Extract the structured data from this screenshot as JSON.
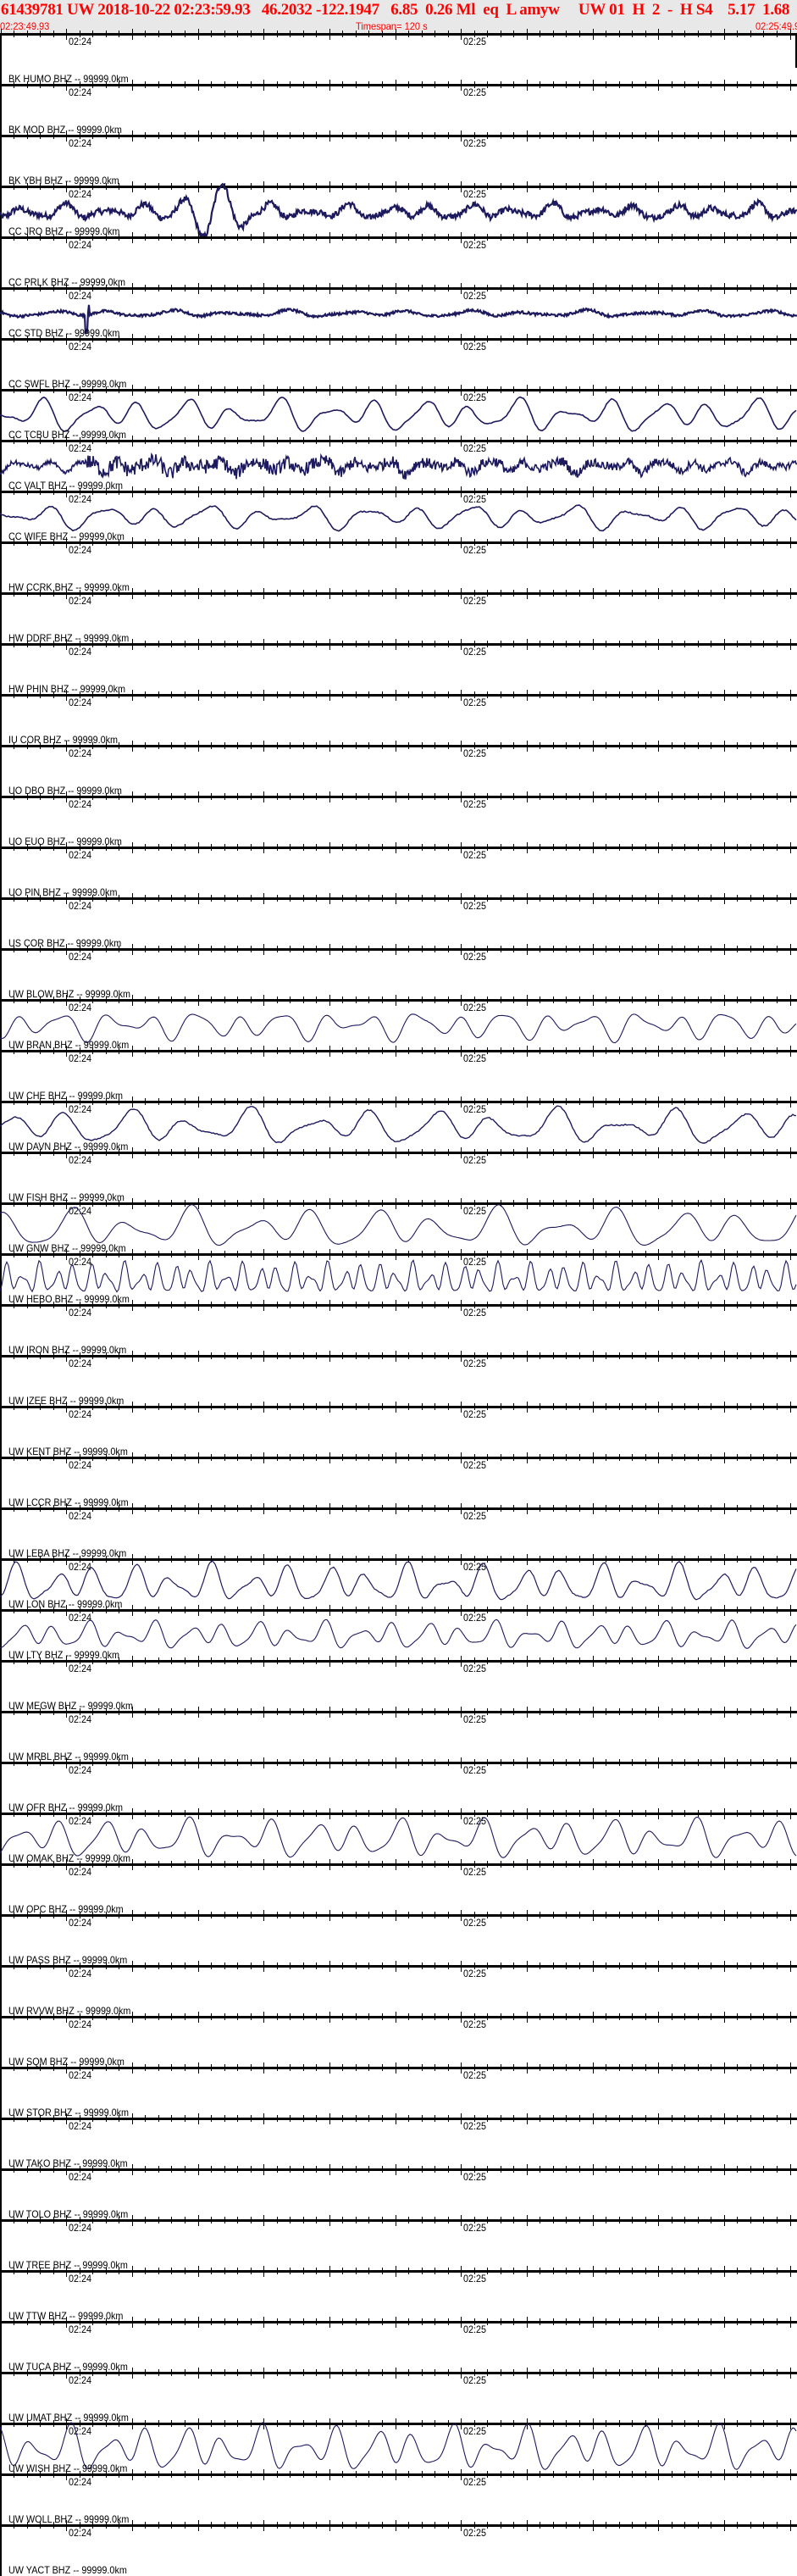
{
  "header": {
    "title_parts": [
      "61439781 UW 2018-10-22 02:23:59.93",
      "46.2032 -122.1947",
      "6.85",
      "0.26 Ml",
      "eq",
      "L amyw",
      "UW 01",
      "H",
      "2",
      "-",
      "H S4",
      "5.17",
      "1.68"
    ],
    "start_time": "02:23:49.93",
    "timespan": "Timespan= 120 s",
    "end_time": "02:25:49.93"
  },
  "chart_data": {
    "type": "line",
    "title": "61439781 UW 2018-10-22 02:23:59.93",
    "x_range": [
      "02:23:49.93",
      "02:25:49.93"
    ],
    "timespan_s": 120,
    "x_tick_labels": [
      "02:24",
      "02:25"
    ],
    "trace_color": "#1e1a5e",
    "text_color": "#ff0000",
    "header_bg": "#e8e8e8",
    "stations": [
      {
        "label": "BK HUMO BHZ -- 99999.0km",
        "has_trace": false
      },
      {
        "label": "BK MOD BHZ -- 99999.0km",
        "has_trace": false
      },
      {
        "label": "BK YBH BHZ -- 99999.0km",
        "has_trace": true
      },
      {
        "label": "CC JRO BHZ -- 99999.0km",
        "has_trace": false
      },
      {
        "label": "CC PRLK BHZ -- 99999.0km",
        "has_trace": true
      },
      {
        "label": "CC STD BHZ -- 99999.0km",
        "has_trace": false
      },
      {
        "label": "CC SWFL BHZ -- 99999.0km",
        "has_trace": true
      },
      {
        "label": "CC TCBU BHZ -- 99999.0km",
        "has_trace": true
      },
      {
        "label": "CC VALT BHZ -- 99999.0km",
        "has_trace": true
      },
      {
        "label": "CC WIFE BHZ -- 99999.0km",
        "has_trace": false
      },
      {
        "label": "HW CCRK BHZ -- 99999.0km",
        "has_trace": false
      },
      {
        "label": "HW DDRF BHZ -- 99999.0km",
        "has_trace": false
      },
      {
        "label": "HW PHIN BHZ -- 99999.0km",
        "has_trace": false
      },
      {
        "label": "IU COR BHZ -- 99999.0km",
        "has_trace": false
      },
      {
        "label": "UO DBO BHZ -- 99999.0km",
        "has_trace": false
      },
      {
        "label": "UO EUO BHZ -- 99999.0km",
        "has_trace": false
      },
      {
        "label": "UO PIN BHZ -- 99999.0km",
        "has_trace": false
      },
      {
        "label": "US COR BHZ -- 99999.0km",
        "has_trace": false
      },
      {
        "label": "UW BLOW BHZ -- 99999.0km",
        "has_trace": true
      },
      {
        "label": "UW BRAN BHZ -- 99999.0km",
        "has_trace": false
      },
      {
        "label": "UW CHE BHZ -- 99999.0km",
        "has_trace": true
      },
      {
        "label": "UW DAVN BHZ -- 99999.0km",
        "has_trace": false
      },
      {
        "label": "UW FISH BHZ -- 99999.0km",
        "has_trace": true
      },
      {
        "label": "UW GNW BHZ -- 99999.0km",
        "has_trace": true
      },
      {
        "label": "UW HEBO BHZ -- 99999.0km",
        "has_trace": false
      },
      {
        "label": "UW IRON BHZ -- 99999.0km",
        "has_trace": false
      },
      {
        "label": "UW IZEE BHZ -- 99999.0km",
        "has_trace": false
      },
      {
        "label": "UW KENT BHZ -- 99999.0km",
        "has_trace": false
      },
      {
        "label": "UW LCCR BHZ -- 99999.0km",
        "has_trace": false
      },
      {
        "label": "UW LEBA BHZ -- 99999.0km",
        "has_trace": true
      },
      {
        "label": "UW LON BHZ -- 99999.0km",
        "has_trace": true
      },
      {
        "label": "UW LTY BHZ -- 99999.0km",
        "has_trace": false
      },
      {
        "label": "UW MEGW BHZ -- 99999.0km",
        "has_trace": false
      },
      {
        "label": "UW MRBL BHZ -- 99999.0km",
        "has_trace": false
      },
      {
        "label": "UW OFR BHZ -- 99999.0km",
        "has_trace": true
      },
      {
        "label": "UW OMAK BHZ -- 99999.0km",
        "has_trace": false
      },
      {
        "label": "UW OPC BHZ -- 99999.0km",
        "has_trace": false
      },
      {
        "label": "UW PASS BHZ -- 99999.0km",
        "has_trace": false
      },
      {
        "label": "UW RVVW BHZ -- 99999.0km",
        "has_trace": false
      },
      {
        "label": "UW SQM BHZ -- 99999.0km",
        "has_trace": false
      },
      {
        "label": "UW STOR BHZ -- 99999.0km",
        "has_trace": false
      },
      {
        "label": "UW TAKO BHZ -- 99999.0km",
        "has_trace": false
      },
      {
        "label": "UW TOLO BHZ -- 99999.0km",
        "has_trace": false
      },
      {
        "label": "UW TREE BHZ -- 99999.0km",
        "has_trace": false
      },
      {
        "label": "UW TTW BHZ -- 99999.0km",
        "has_trace": false
      },
      {
        "label": "UW TUCA BHZ -- 99999.0km",
        "has_trace": false
      },
      {
        "label": "UW UMAT BHZ -- 99999.0km",
        "has_trace": true
      },
      {
        "label": "UW WISH BHZ -- 99999.0km",
        "has_trace": false
      },
      {
        "label": "UW WOLL BHZ -- 99999.0km",
        "has_trace": false
      },
      {
        "label": "UW YACT BHZ -- 99999.0km",
        "has_trace": false
      }
    ]
  }
}
